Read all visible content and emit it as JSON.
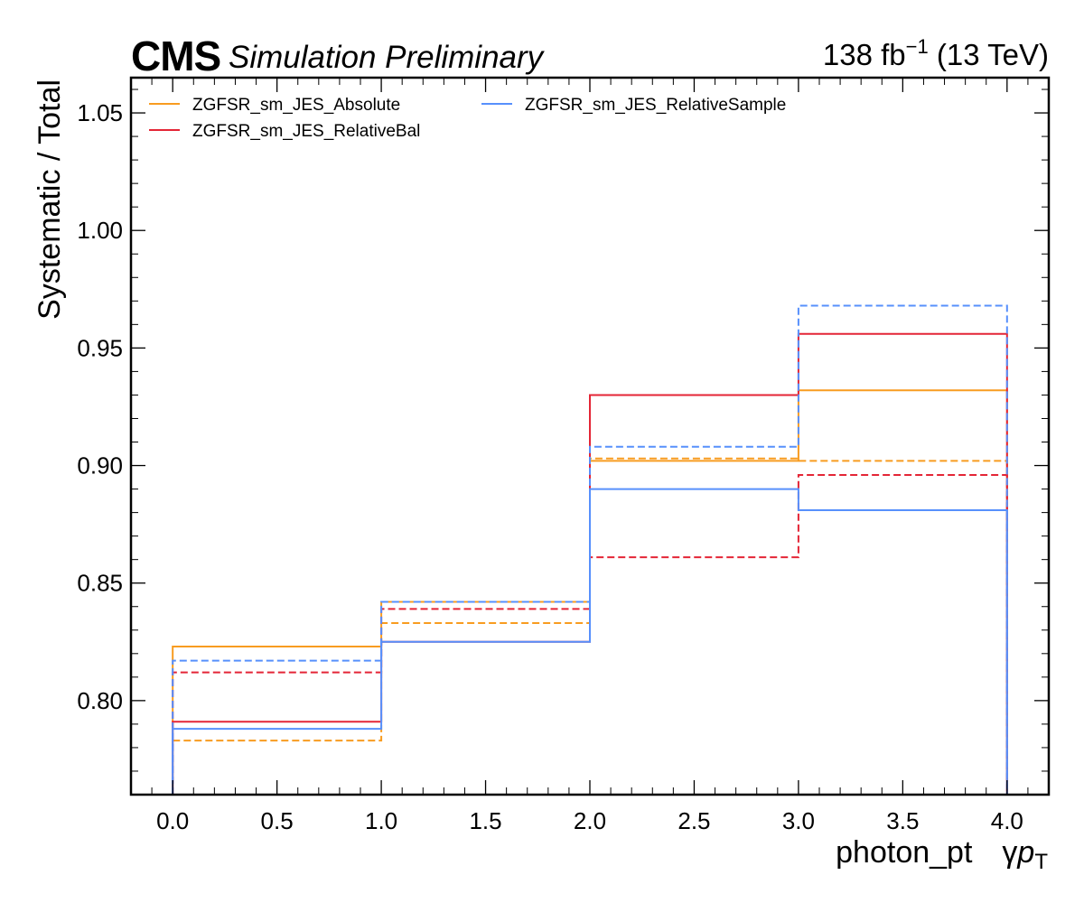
{
  "header": {
    "experiment": "CMS",
    "status": "Simulation Preliminary",
    "lumi_value": "138 fb",
    "lumi_exponent": "−1",
    "energy": " (13 TeV)"
  },
  "chart_data": {
    "type": "line",
    "drawstyle": "step",
    "xlabel": "photon_pt",
    "xlabel_symbol": "γ",
    "xlabel_var": "p",
    "xlabel_sub": "T",
    "ylabel": "Systematic / Total",
    "xlim": [
      -0.2,
      4.2
    ],
    "ylim": [
      0.76,
      1.065
    ],
    "x_ticks": [
      "0.0",
      "0.5",
      "1.0",
      "1.5",
      "2.0",
      "2.5",
      "3.0",
      "3.5",
      "4.0"
    ],
    "y_ticks": [
      "0.80",
      "0.85",
      "0.90",
      "0.95",
      "1.00",
      "1.05"
    ],
    "bin_edges": [
      0,
      1,
      2,
      3,
      4
    ],
    "legend": {
      "placement": "top-left",
      "columns": 2
    },
    "grid": false,
    "series": [
      {
        "name": "ZGFSR_sm_JES_Absolute",
        "color": "#f89c20",
        "up": [
          0.823,
          0.842,
          0.902,
          0.932
        ],
        "down": [
          0.783,
          0.833,
          0.903,
          0.902
        ]
      },
      {
        "name": "ZGFSR_sm_JES_RelativeBal",
        "color": "#e42536",
        "up": [
          0.791,
          0.825,
          0.93,
          0.956
        ],
        "down": [
          0.812,
          0.839,
          0.861,
          0.896
        ]
      },
      {
        "name": "ZGFSR_sm_JES_RelativeSample",
        "color": "#5790fc",
        "up": [
          0.788,
          0.825,
          0.89,
          0.881
        ],
        "down": [
          0.817,
          0.842,
          0.908,
          0.968
        ]
      }
    ]
  }
}
